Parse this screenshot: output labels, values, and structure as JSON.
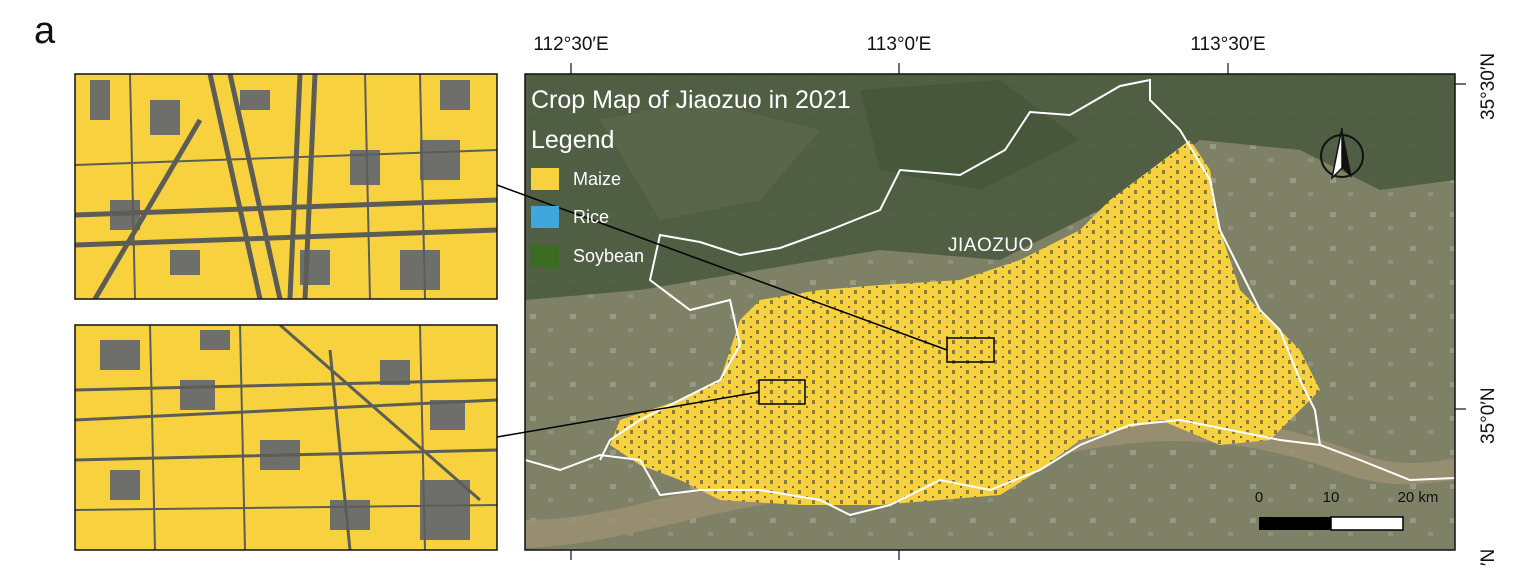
{
  "panel_letter": "a",
  "map": {
    "title": "Crop Map of Jiaozuo in 2021",
    "place_label": "JIAOZUO",
    "longitude_labels": [
      "112°30′E",
      "113°0′E",
      "113°30′E"
    ],
    "latitude_labels": [
      "35°30′N",
      "35°0′N",
      "′N"
    ]
  },
  "legend": {
    "title": "Legend",
    "items": [
      {
        "label": "Maize",
        "color": "#f7d23e"
      },
      {
        "label": "Rice",
        "color": "#3ea8de"
      },
      {
        "label": "Soybean",
        "color": "#3a6b1f"
      }
    ]
  },
  "scale_bar": {
    "ticks": [
      "0",
      "10",
      "20 km"
    ]
  },
  "colors": {
    "maize": "#f7d23e",
    "imagery_dark": "#4a5a3e",
    "imagery_plain": "#7d8064",
    "boundary": "#ffffff",
    "inset_buildings": "#6e6e6a"
  },
  "icons": [
    "north-arrow-icon"
  ],
  "insets": [
    {
      "name": "inset-top"
    },
    {
      "name": "inset-bottom"
    }
  ]
}
